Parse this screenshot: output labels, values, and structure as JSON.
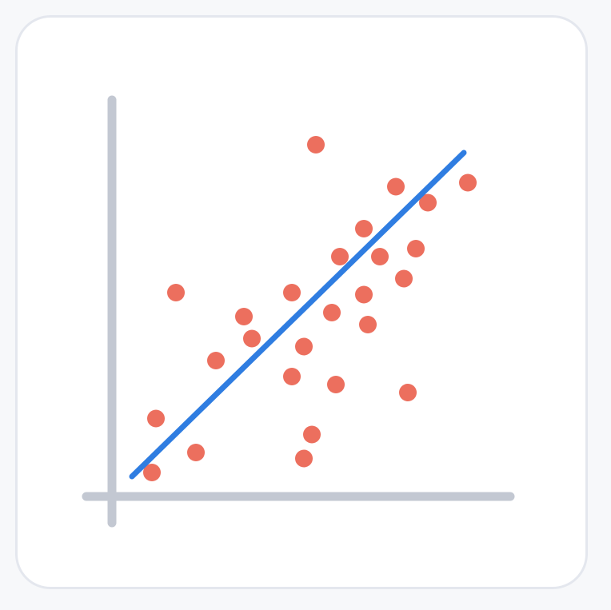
{
  "colors": {
    "background": "#f7f8fa",
    "card": "#ffffff",
    "card_border": "#e4e7ee",
    "axis": "#c3c8d2",
    "points": "#ec6f5e",
    "trendline": "#2f7de1"
  },
  "chart_data": {
    "type": "scatter",
    "title": "",
    "xlabel": "",
    "ylabel": "",
    "xlim": [
      0,
      10
    ],
    "ylim": [
      0,
      10
    ],
    "grid": false,
    "legend": "none",
    "points": [
      {
        "x": 1.0,
        "y": 0.6
      },
      {
        "x": 1.1,
        "y": 1.95
      },
      {
        "x": 1.6,
        "y": 5.1
      },
      {
        "x": 2.1,
        "y": 1.1
      },
      {
        "x": 2.6,
        "y": 3.4
      },
      {
        "x": 3.3,
        "y": 4.5
      },
      {
        "x": 3.5,
        "y": 3.95
      },
      {
        "x": 4.5,
        "y": 5.1
      },
      {
        "x": 4.5,
        "y": 3.0
      },
      {
        "x": 4.8,
        "y": 3.75
      },
      {
        "x": 4.8,
        "y": 0.95
      },
      {
        "x": 5.0,
        "y": 1.55
      },
      {
        "x": 5.1,
        "y": 8.8
      },
      {
        "x": 5.5,
        "y": 4.6
      },
      {
        "x": 5.6,
        "y": 2.8
      },
      {
        "x": 5.7,
        "y": 6.0
      },
      {
        "x": 6.3,
        "y": 6.7
      },
      {
        "x": 6.3,
        "y": 5.05
      },
      {
        "x": 6.4,
        "y": 4.3
      },
      {
        "x": 6.7,
        "y": 6.0
      },
      {
        "x": 7.1,
        "y": 7.75
      },
      {
        "x": 7.3,
        "y": 5.45
      },
      {
        "x": 7.4,
        "y": 2.6
      },
      {
        "x": 7.6,
        "y": 6.2
      },
      {
        "x": 7.9,
        "y": 7.35
      },
      {
        "x": 8.9,
        "y": 7.85
      }
    ],
    "trendline": {
      "x": [
        0.5,
        8.8
      ],
      "y": [
        0.5,
        8.6
      ]
    }
  }
}
